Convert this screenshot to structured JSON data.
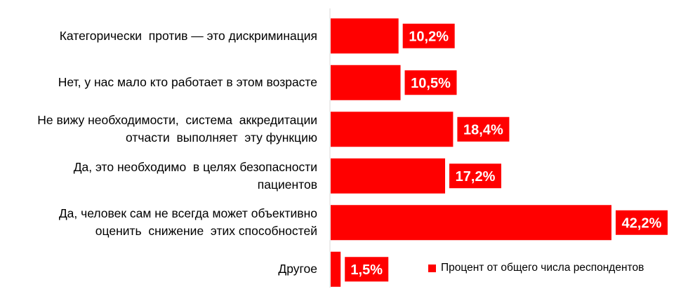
{
  "chart_data": {
    "type": "bar",
    "orientation": "horizontal",
    "categories": [
      [
        "Категорически  против — это дискриминация"
      ],
      [
        "Нет, у нас мало кто работает в этом возрасте"
      ],
      [
        "Не вижу необходимости,  система  аккредитации",
        "отчасти  выполняет  эту функцию"
      ],
      [
        "Да, это необходимо  в целях безопасности",
        "пациентов"
      ],
      [
        "Да, человек сам не всегда может объективно",
        "оценить  снижение  этих способностей"
      ],
      [
        "Другое"
      ]
    ],
    "series": [
      {
        "name": "Процент от общего числа респондентов",
        "values": [
          10.2,
          10.5,
          18.4,
          17.2,
          42.2,
          1.5
        ],
        "labels": [
          "10,2%",
          "10,5%",
          "18,4%",
          "17,2%",
          "42,2%",
          "1,5%"
        ]
      }
    ],
    "xlim": [
      0,
      45
    ],
    "grid": false,
    "legend_position": "bottom-right",
    "colors": {
      "bar": "#ff0000",
      "label_bg": "#ff0000",
      "label_text": "#ffffff",
      "axis": "#d9d9d9"
    }
  }
}
